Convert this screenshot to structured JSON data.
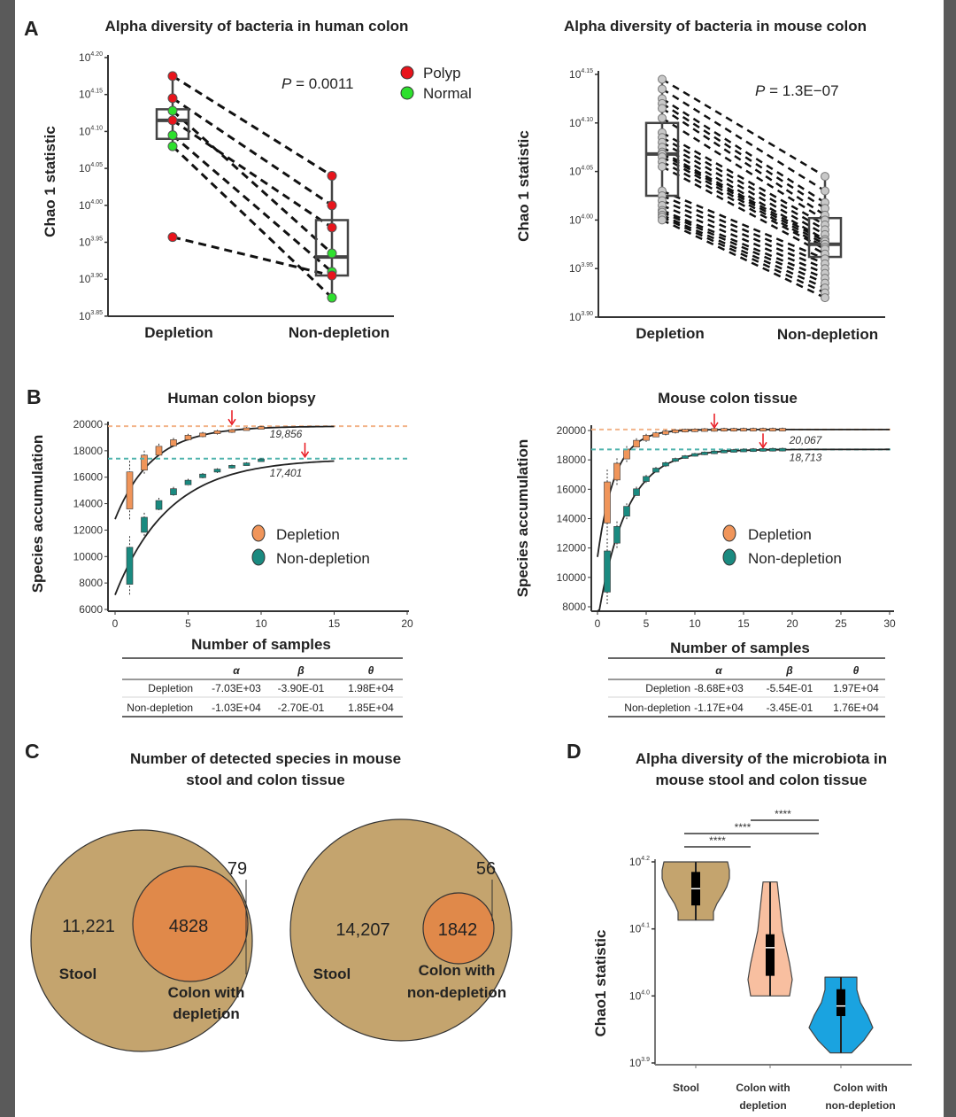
{
  "panels": {
    "A": {
      "letter": "A"
    },
    "B": {
      "letter": "B"
    },
    "C": {
      "letter": "C"
    },
    "D": {
      "letter": "D"
    }
  },
  "colors": {
    "polyp": "#e8141c",
    "normal": "#2ee02e",
    "mouse_point": "#c8c8c8",
    "depletion": "#f0955a",
    "non_depletion": "#1a8a80",
    "stool": "#c4a46e",
    "colon_overlap": "#e0894a",
    "violin_stool": "#c4a46e",
    "violin_depletion": "#f8bfa0",
    "violin_non_depletion": "#1aa3e0"
  },
  "chart_data": [
    {
      "id": "A-human",
      "type": "box-paired",
      "title": "Alpha diversity of bacteria in human colon",
      "ylabel": "Chao 1 statistic",
      "yscale": "log10",
      "ylim_exponent": [
        3.85,
        4.2
      ],
      "ytick_base": "10",
      "yticks": [
        "4.20",
        "4.15",
        "4.10",
        "4.05",
        "4.00",
        "3.95",
        "3.90",
        "3.85"
      ],
      "categories": [
        "Depletion",
        "Non-depletion"
      ],
      "p_label": "P",
      "p_value": "= 0.0011",
      "legend": [
        {
          "name": "Polyp",
          "color": "#e8141c"
        },
        {
          "name": "Normal",
          "color": "#2ee02e"
        }
      ],
      "legend_position": "top-right",
      "pairs": [
        {
          "group": "Polyp",
          "depletion": 4.175,
          "non_depletion": 4.04
        },
        {
          "group": "Polyp",
          "depletion": 4.145,
          "non_depletion": 4.0
        },
        {
          "group": "Normal",
          "depletion": 4.128,
          "non_depletion": 3.935
        },
        {
          "group": "Polyp",
          "depletion": 4.115,
          "non_depletion": 3.97
        },
        {
          "group": "Normal",
          "depletion": 4.095,
          "non_depletion": 3.91
        },
        {
          "group": "Normal",
          "depletion": 4.08,
          "non_depletion": 3.875
        },
        {
          "group": "Polyp",
          "depletion": 3.957,
          "non_depletion": 3.905
        }
      ],
      "boxes": [
        {
          "category": "Depletion",
          "whisker_low": 4.08,
          "q1": 4.09,
          "median": 4.115,
          "q3": 4.13,
          "whisker_high": 4.175
        },
        {
          "category": "Non-depletion",
          "whisker_low": 3.875,
          "q1": 3.905,
          "median": 3.93,
          "q3": 3.98,
          "whisker_high": 4.04
        }
      ]
    },
    {
      "id": "A-mouse",
      "type": "box-paired",
      "title": "Alpha diversity of bacteria in mouse colon",
      "ylabel": "Chao 1 statistic",
      "yscale": "log10",
      "ylim_exponent": [
        3.9,
        4.15
      ],
      "ytick_base": "10",
      "yticks": [
        "4.15",
        "4.10",
        "4.05",
        "4.00",
        "3.95",
        "3.90"
      ],
      "categories": [
        "Depletion",
        "Non-depletion"
      ],
      "p_label": "P",
      "p_value": "= 1.3E−07",
      "depletion": [
        4.145,
        4.135,
        4.125,
        4.12,
        4.115,
        4.105,
        4.09,
        4.085,
        4.08,
        4.075,
        4.07,
        4.068,
        4.065,
        4.06,
        4.055,
        4.03,
        4.025,
        4.02,
        4.015,
        4.01,
        4.008,
        4.005,
        4.003,
        4.0
      ],
      "non_depletion": [
        4.045,
        4.03,
        4.018,
        4.012,
        4.005,
        4.0,
        3.995,
        3.99,
        3.985,
        3.98,
        3.978,
        3.975,
        3.972,
        3.97,
        3.965,
        3.96,
        3.955,
        3.95,
        3.945,
        3.94,
        3.935,
        3.93,
        3.925,
        3.92
      ],
      "boxes": [
        {
          "category": "Depletion",
          "whisker_low": 4.0,
          "q1": 4.025,
          "median": 4.068,
          "q3": 4.1,
          "whisker_high": 4.145
        },
        {
          "category": "Non-depletion",
          "whisker_low": 3.92,
          "q1": 3.962,
          "median": 3.975,
          "q3": 4.002,
          "whisker_high": 4.045
        }
      ]
    },
    {
      "id": "B-human",
      "type": "line",
      "title": "Human colon biopsy",
      "xlabel": "Number of samples",
      "ylabel": "Species accumulation",
      "xlim": [
        0,
        20
      ],
      "ylim": [
        6000,
        20000
      ],
      "xticks": [
        "0",
        "5",
        "10",
        "15",
        "20"
      ],
      "yticks": [
        "20000",
        "18000",
        "16000",
        "14000",
        "12000",
        "10000",
        "8000",
        "6000"
      ],
      "legend": [
        "Depletion",
        "Non-depletion"
      ],
      "legend_position": "center-right",
      "series": [
        {
          "name": "Depletion",
          "x": [
            1,
            2,
            3,
            4,
            5,
            6,
            7,
            8,
            9,
            10
          ],
          "median": [
            15000,
            17100,
            18000,
            18600,
            19000,
            19200,
            19400,
            19500,
            19650,
            19750
          ],
          "plateau": 19856,
          "plateau_label": "19,856",
          "saturation_x": 8
        },
        {
          "name": "Non-depletion",
          "x": [
            1,
            2,
            3,
            4,
            5,
            6,
            7,
            8,
            9,
            10
          ],
          "median": [
            9300,
            12400,
            13900,
            14900,
            15600,
            16100,
            16500,
            16800,
            17000,
            17300
          ],
          "plateau": 17401,
          "plateau_label": "17,401",
          "saturation_x": 13
        }
      ],
      "table": {
        "headers": [
          "α",
          "β",
          "θ"
        ],
        "rows": [
          {
            "label": "Depletion",
            "values": [
              "-7.03E+03",
              "-3.90E-01",
              "1.98E+04"
            ]
          },
          {
            "label": "Non-depletion",
            "values": [
              "-1.03E+04",
              "-2.70E-01",
              "1.85E+04"
            ]
          }
        ]
      }
    },
    {
      "id": "B-mouse",
      "type": "line",
      "title": "Mouse colon tissue",
      "xlabel": "Number of samples",
      "ylabel": "Species accumulation",
      "xlim": [
        0,
        30
      ],
      "ylim": [
        8000,
        20000
      ],
      "xticks": [
        "0",
        "5",
        "10",
        "15",
        "20",
        "25",
        "30"
      ],
      "yticks": [
        "20000",
        "18000",
        "16000",
        "14000",
        "12000",
        "10000",
        "8000"
      ],
      "legend": [
        "Depletion",
        "Non-depletion"
      ],
      "legend_position": "center-right",
      "series": [
        {
          "name": "Depletion",
          "x": [
            1,
            2,
            3,
            4,
            5,
            6,
            7,
            8,
            9,
            10,
            11,
            12,
            13,
            14,
            15,
            16,
            17,
            18,
            19
          ],
          "median": [
            15100,
            17200,
            18400,
            19100,
            19500,
            19700,
            19850,
            19950,
            20000,
            20020,
            20040,
            20050,
            20060,
            20060,
            20065,
            20065,
            20067,
            20067,
            20067
          ],
          "plateau": 20067,
          "plateau_label": "20,067",
          "saturation_x": 12
        },
        {
          "name": "Non-depletion",
          "x": [
            1,
            2,
            3,
            4,
            5,
            6,
            7,
            8,
            9,
            10,
            11,
            12,
            13,
            14,
            15,
            16,
            17,
            18,
            19
          ],
          "median": [
            10400,
            12900,
            14500,
            15800,
            16700,
            17300,
            17700,
            18000,
            18200,
            18350,
            18450,
            18520,
            18580,
            18620,
            18650,
            18670,
            18690,
            18700,
            18705
          ],
          "plateau": 18713,
          "plateau_label": "18,713",
          "saturation_x": 17
        }
      ],
      "table": {
        "headers": [
          "α",
          "β",
          "θ"
        ],
        "rows": [
          {
            "label": "Depletion",
            "values": [
              "-8.68E+03",
              "-5.54E-01",
              "1.97E+04"
            ]
          },
          {
            "label": "Non-depletion",
            "values": [
              "-1.17E+04",
              "-3.45E-01",
              "1.76E+04"
            ]
          }
        ]
      }
    },
    {
      "id": "C",
      "type": "venn",
      "title_lines": [
        "Number of detected species in mouse",
        "stool and colon tissue"
      ],
      "diagrams": [
        {
          "set_a": "Stool",
          "set_b_lines": [
            "Colon with",
            "depletion"
          ],
          "only_a": "11,221",
          "both": "4828",
          "only_b": "79"
        },
        {
          "set_a": "Stool",
          "set_b_lines": [
            "Colon with",
            "non-depletion"
          ],
          "only_a": "14,207",
          "both": "1842",
          "only_b": "56"
        }
      ]
    },
    {
      "id": "D",
      "type": "violin",
      "title_lines": [
        "Alpha diversity of the microbiota in",
        "mouse stool and colon tissue"
      ],
      "ylabel": "Chao1 statistic",
      "yscale": "log10",
      "ylim_exponent": [
        3.9,
        4.2
      ],
      "ytick_base": "10",
      "yticks": [
        "4.2",
        "4.1",
        "4.0",
        "3.9"
      ],
      "categories": [
        [
          "Stool"
        ],
        [
          "Colon with",
          "depletion"
        ],
        [
          "Colon with",
          "non-depletion"
        ]
      ],
      "violins": [
        {
          "min": 4.113,
          "max": 4.2,
          "q1": 4.135,
          "median": 4.16,
          "q3": 4.185,
          "color": "#c4a46e"
        },
        {
          "min": 4.0,
          "max": 4.17,
          "q1": 4.03,
          "median": 4.072,
          "q3": 4.092,
          "color": "#f8bfa0"
        },
        {
          "min": 3.915,
          "max": 4.028,
          "q1": 3.97,
          "median": 3.985,
          "q3": 4.01,
          "color": "#1aa3e0"
        }
      ],
      "significance": [
        {
          "from": 0,
          "to": 1,
          "label": "****"
        },
        {
          "from": 0,
          "to": 2,
          "label": "****"
        },
        {
          "from": 1,
          "to": 2,
          "label": "****"
        }
      ]
    }
  ]
}
